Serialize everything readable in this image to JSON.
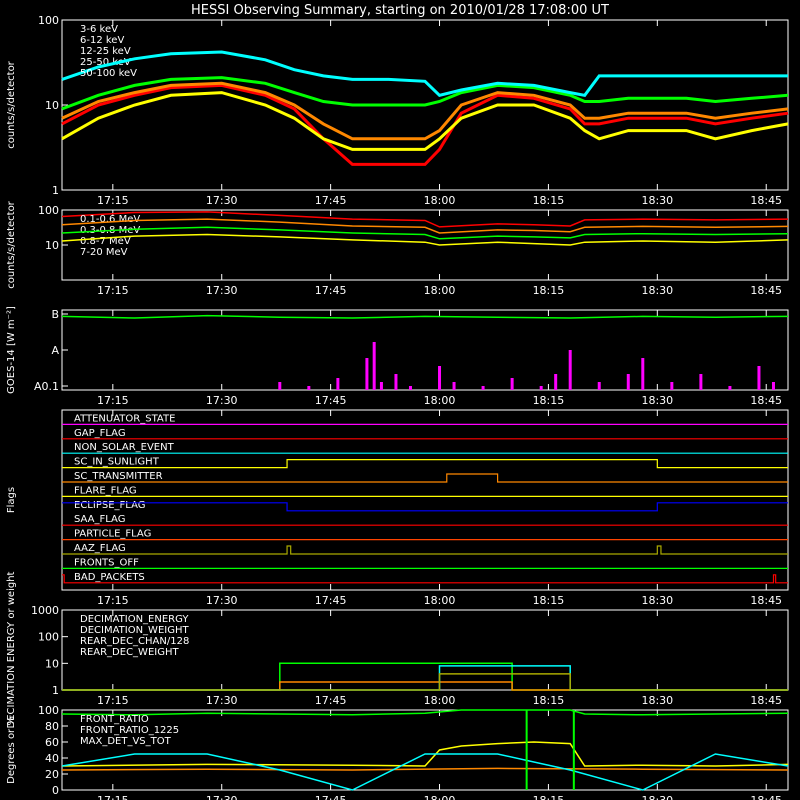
{
  "title": "HESSI Observing Summary, starting on 2010/01/28 17:08:00 UT",
  "time_ticks": [
    "17:15",
    "17:30",
    "17:45",
    "18:00",
    "18:15",
    "18:30",
    "18:45"
  ],
  "time_tick_minutes": [
    7,
    22,
    37,
    52,
    67,
    82,
    97
  ],
  "time_range_minutes": [
    0,
    100
  ],
  "chart_data": [
    {
      "type": "line",
      "ylabel": "counts/s/detector",
      "yscale": "log",
      "ylim": [
        1,
        100
      ],
      "y_ticks": [
        "100",
        "10",
        "1"
      ],
      "legend_placement": "top-left",
      "series": [
        {
          "name": "3-6 keV",
          "color": "#ff0000",
          "x": [
            0,
            5,
            10,
            15,
            22,
            28,
            32,
            36,
            40,
            45,
            50,
            52,
            55,
            60,
            65,
            70,
            72,
            74,
            78,
            82,
            86,
            90,
            95,
            100
          ],
          "y": [
            6,
            10,
            13,
            16,
            17,
            13,
            9,
            4,
            2,
            2,
            2,
            3,
            8,
            13,
            12,
            9,
            6,
            6,
            7,
            7,
            7,
            6,
            7,
            8
          ]
        },
        {
          "name": "6-12 keV",
          "color": "#ff8800",
          "x": [
            0,
            5,
            10,
            15,
            22,
            28,
            32,
            36,
            40,
            45,
            50,
            52,
            55,
            60,
            65,
            70,
            72,
            74,
            78,
            82,
            86,
            90,
            95,
            100
          ],
          "y": [
            7,
            11,
            14,
            17,
            18,
            14,
            10,
            6,
            4,
            4,
            4,
            5,
            10,
            14,
            13,
            10,
            7,
            7,
            8,
            8,
            8,
            7,
            8,
            9
          ]
        },
        {
          "name": "12-25 keV",
          "color": "#ffff00",
          "x": [
            0,
            5,
            10,
            15,
            22,
            28,
            32,
            36,
            40,
            45,
            50,
            52,
            55,
            60,
            65,
            70,
            72,
            74,
            78,
            82,
            86,
            90,
            95,
            100
          ],
          "y": [
            4,
            7,
            10,
            13,
            14,
            10,
            7,
            4,
            3,
            3,
            3,
            4,
            7,
            10,
            10,
            7,
            5,
            4,
            5,
            5,
            5,
            4,
            5,
            6
          ]
        },
        {
          "name": "25-50 keV",
          "color": "#00ff00",
          "x": [
            0,
            5,
            10,
            15,
            22,
            28,
            32,
            36,
            40,
            45,
            50,
            52,
            55,
            60,
            65,
            70,
            72,
            74,
            78,
            82,
            86,
            90,
            95,
            100
          ],
          "y": [
            9,
            13,
            17,
            20,
            21,
            18,
            14,
            11,
            10,
            10,
            10,
            11,
            14,
            17,
            16,
            13,
            11,
            11,
            12,
            12,
            12,
            11,
            12,
            13
          ]
        },
        {
          "name": "50-100 keV",
          "color": "#00ffff",
          "x": [
            0,
            5,
            10,
            15,
            22,
            28,
            32,
            36,
            40,
            45,
            50,
            52,
            55,
            60,
            65,
            70,
            72,
            74,
            78,
            82,
            86,
            90,
            95,
            100
          ],
          "y": [
            20,
            28,
            35,
            40,
            42,
            34,
            26,
            22,
            20,
            20,
            19,
            13,
            15,
            18,
            17,
            14,
            13,
            22,
            22,
            22,
            22,
            22,
            22,
            22
          ]
        }
      ]
    },
    {
      "type": "line",
      "ylabel": "counts/s/detector",
      "yscale": "log",
      "ylim": [
        1,
        100
      ],
      "y_ticks": [
        "100",
        "10"
      ],
      "legend_placement": "top-left",
      "series": [
        {
          "name": "0.1-0.6 MeV",
          "color": "#ff0000",
          "x": [
            0,
            10,
            20,
            30,
            40,
            50,
            52,
            60,
            65,
            70,
            72,
            80,
            90,
            100
          ],
          "y": [
            65,
            85,
            88,
            70,
            55,
            50,
            33,
            40,
            38,
            35,
            52,
            55,
            52,
            55
          ]
        },
        {
          "name": "0.3-0.8 MeV",
          "color": "#ff8800",
          "x": [
            0,
            10,
            20,
            30,
            40,
            50,
            52,
            60,
            65,
            70,
            72,
            80,
            90,
            100
          ],
          "y": [
            38,
            50,
            55,
            45,
            35,
            32,
            22,
            27,
            26,
            24,
            32,
            34,
            32,
            34
          ]
        },
        {
          "name": "0.8-7 MeV",
          "color": "#00ff00",
          "x": [
            0,
            10,
            20,
            30,
            40,
            50,
            52,
            60,
            65,
            70,
            72,
            80,
            90,
            100
          ],
          "y": [
            22,
            28,
            32,
            27,
            22,
            20,
            15,
            18,
            17,
            16,
            20,
            21,
            20,
            21
          ]
        },
        {
          "name": "7-20 MeV",
          "color": "#ffff00",
          "x": [
            0,
            10,
            20,
            30,
            40,
            50,
            52,
            60,
            65,
            70,
            72,
            80,
            90,
            100
          ],
          "y": [
            13,
            18,
            20,
            17,
            14,
            12,
            10,
            12,
            11,
            10,
            12,
            13,
            12,
            14
          ]
        }
      ]
    },
    {
      "type": "line",
      "ylabel": "GOES-14 [W m⁻²]",
      "y_ticks": [
        "B",
        "A",
        "A0.1"
      ],
      "series": [
        {
          "color": "#00ff00",
          "x": [
            0,
            10,
            20,
            30,
            40,
            50,
            60,
            70,
            80,
            90,
            100
          ],
          "y": [
            0.92,
            0.9,
            0.93,
            0.91,
            0.9,
            0.92,
            0.91,
            0.9,
            0.92,
            0.91,
            0.92
          ]
        },
        {
          "color": "#ff00ff",
          "x": [
            30,
            34,
            38,
            42,
            43,
            44,
            46,
            48,
            52,
            54,
            58,
            62,
            66,
            68,
            70,
            74,
            78,
            80,
            84,
            88,
            92,
            96,
            98
          ],
          "y": [
            0.1,
            0.05,
            0.15,
            0.4,
            0.6,
            0.1,
            0.2,
            0.05,
            0.3,
            0.1,
            0.05,
            0.15,
            0.05,
            0.2,
            0.5,
            0.1,
            0.2,
            0.4,
            0.1,
            0.2,
            0.05,
            0.3,
            0.1
          ]
        }
      ]
    },
    {
      "type": "line",
      "ylabel": "Flags",
      "flags": [
        {
          "name": "ATTENUATOR_STATE",
          "color": "#ff00ff",
          "steps": []
        },
        {
          "name": "GAP_FLAG",
          "color": "#ff0000",
          "steps": []
        },
        {
          "name": "NON_SOLAR_EVENT",
          "color": "#00ffff",
          "steps": []
        },
        {
          "name": "SC_IN_SUNLIGHT",
          "color": "#ffff00",
          "steps": [
            [
              0,
              0
            ],
            [
              31,
              1
            ],
            [
              82,
              1
            ],
            [
              82,
              0
            ]
          ]
        },
        {
          "name": "SC_TRANSMITTER",
          "color": "#ff8800",
          "steps": [
            [
              0,
              0
            ],
            [
              53,
              1
            ],
            [
              60,
              1
            ],
            [
              60,
              0
            ]
          ]
        },
        {
          "name": "FLARE_FLAG",
          "color": "#ffff00",
          "steps": []
        },
        {
          "name": "ECLIPSE_FLAG",
          "color": "#0000ff",
          "steps": [
            [
              0,
              1
            ],
            [
              31,
              0
            ],
            [
              82,
              0
            ],
            [
              82,
              1
            ]
          ]
        },
        {
          "name": "SAA_FLAG",
          "color": "#ff0000",
          "steps": []
        },
        {
          "name": "PARTICLE_FLAG",
          "color": "#ff4400",
          "steps": []
        },
        {
          "name": "AAZ_FLAG",
          "color": "#aaaa00",
          "steps": [
            [
              0,
              0
            ],
            [
              31,
              1
            ],
            [
              31.5,
              0
            ],
            [
              82,
              1
            ],
            [
              82.5,
              0
            ]
          ]
        },
        {
          "name": "FRONTS_OFF",
          "color": "#00ff00",
          "steps": []
        },
        {
          "name": "BAD_PACKETS",
          "color": "#ff0000",
          "steps": [
            [
              0,
              1
            ],
            [
              0.3,
              0
            ],
            [
              98,
              1
            ],
            [
              98.3,
              0
            ]
          ]
        }
      ]
    },
    {
      "type": "line",
      "ylabel": "DECIMATION ENERGY or weight",
      "yscale": "log",
      "ylim": [
        1,
        1000
      ],
      "y_ticks": [
        "1000",
        "100",
        "10",
        "1"
      ],
      "legend_placement": "top-left",
      "series": [
        {
          "name": "DECIMATION_ENERGY",
          "color": "#00ff00",
          "x": [
            0,
            30,
            30,
            52,
            52,
            62,
            62,
            100
          ],
          "y": [
            1,
            1,
            10,
            10,
            10,
            10,
            1,
            1
          ]
        },
        {
          "name": "DECIMATION_WEIGHT",
          "color": "#ff8800",
          "x": [
            0,
            30,
            30,
            62,
            62,
            100
          ],
          "y": [
            1,
            1,
            2,
            2,
            1,
            1
          ]
        },
        {
          "name": "REAR_DEC_CHAN/128",
          "color": "#00ffff",
          "x": [
            0,
            52,
            52,
            70,
            70,
            100
          ],
          "y": [
            1,
            1,
            8,
            8,
            1,
            1
          ]
        },
        {
          "name": "REAR_DEC_WEIGHT",
          "color": "#aaaa00",
          "x": [
            0,
            52,
            52,
            70,
            70,
            100
          ],
          "y": [
            1,
            1,
            4,
            4,
            1,
            1
          ]
        }
      ]
    },
    {
      "type": "line",
      "ylabel": "Degrees or %",
      "ylim": [
        0,
        100
      ],
      "y_ticks": [
        "100",
        "80",
        "60",
        "40",
        "20",
        "0"
      ],
      "legend_placement": "top-left",
      "series": [
        {
          "name": "FRONT_RATIO",
          "color": "#00ff00",
          "x": [
            0,
            10,
            20,
            30,
            40,
            50,
            55,
            60,
            65,
            70,
            72,
            80,
            90,
            100
          ],
          "y": [
            95,
            94,
            96,
            95,
            94,
            96,
            100,
            100,
            100,
            100,
            95,
            94,
            95,
            96
          ]
        },
        {
          "name": "FRONT_RATIO_1225",
          "color": "#ffff00",
          "x": [
            0,
            20,
            40,
            50,
            52,
            55,
            60,
            65,
            70,
            72,
            80,
            90,
            100
          ],
          "y": [
            30,
            32,
            31,
            30,
            50,
            55,
            58,
            60,
            58,
            30,
            31,
            30,
            32
          ]
        },
        {
          "name": "MAX_DET_VS_TOT",
          "color": "#ff8800",
          "x": [
            0,
            20,
            40,
            60,
            80,
            100
          ],
          "y": [
            25,
            26,
            25,
            27,
            26,
            25
          ]
        },
        {
          "color": "#00ffff",
          "x": [
            0,
            10,
            20,
            30,
            40,
            50,
            60,
            70,
            80,
            90,
            100
          ],
          "y": [
            30,
            45,
            45,
            25,
            0,
            45,
            45,
            25,
            0,
            45,
            30
          ]
        }
      ]
    }
  ]
}
